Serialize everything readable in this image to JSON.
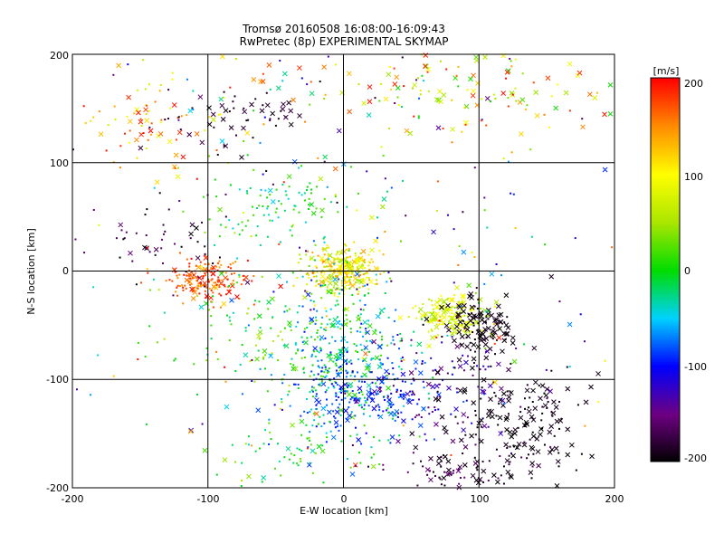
{
  "chart_data": {
    "type": "scatter",
    "title": "Tromsø 20160508 16:08:00-16:09:43",
    "subtitle": "RwPretec (8p) EXPERIMENTAL SKYMAP",
    "xlabel": "E-W location [km]",
    "ylabel": "N-S location [km]",
    "xlim": [
      -200,
      200
    ],
    "ylim": [
      -200,
      200
    ],
    "x_ticks": [
      "-200",
      "-100",
      "0",
      "100",
      "200"
    ],
    "y_ticks": [
      "-200",
      "-100",
      "0",
      "100",
      "200"
    ],
    "grid": true,
    "colorbar": {
      "label": "[m/s]",
      "range": [
        -200,
        200
      ],
      "ticks": [
        "-200",
        "-100",
        "0",
        "100",
        "200"
      ]
    },
    "marker_types": [
      "dot",
      "x"
    ],
    "clusters": [
      {
        "cx": 0,
        "cy": 0,
        "sx": 12,
        "sy": 10,
        "n": 300,
        "vmin": 40,
        "vmax": 150,
        "xfrac": 0.15
      },
      {
        "cx": -100,
        "cy": -8,
        "sx": 14,
        "sy": 9,
        "n": 170,
        "vmin": 140,
        "vmax": 200,
        "xfrac": 0.15
      },
      {
        "cx": 80,
        "cy": -42,
        "sx": 14,
        "sy": 10,
        "n": 170,
        "vmin": 40,
        "vmax": 110,
        "xfrac": 0.25
      },
      {
        "cx": 100,
        "cy": -50,
        "sx": 14,
        "sy": 15,
        "n": 110,
        "vmin": -200,
        "vmax": -185,
        "xfrac": 0.65
      },
      {
        "cx": 0,
        "cy": -80,
        "sx": 25,
        "sy": 38,
        "n": 380,
        "vmin": -100,
        "vmax": 30,
        "xfrac": 0.15
      },
      {
        "cx": 20,
        "cy": -115,
        "sx": 30,
        "sy": 18,
        "n": 170,
        "vmin": -110,
        "vmax": -70,
        "xfrac": 0.25
      },
      {
        "cx": 70,
        "cy": -110,
        "sx": 30,
        "sy": 28,
        "n": 110,
        "vmin": -170,
        "vmax": -110,
        "xfrac": 0.3
      },
      {
        "cx": 125,
        "cy": -140,
        "sx": 30,
        "sy": 30,
        "n": 180,
        "vmin": -200,
        "vmax": -185,
        "xfrac": 0.55
      },
      {
        "cx": -60,
        "cy": -50,
        "sx": 40,
        "sy": 35,
        "n": 130,
        "vmin": -40,
        "vmax": 60,
        "xfrac": 0.1
      },
      {
        "cx": -40,
        "cy": 60,
        "sx": 30,
        "sy": 20,
        "n": 90,
        "vmin": -50,
        "vmax": 30,
        "xfrac": 0.1
      },
      {
        "cx": -130,
        "cy": 25,
        "sx": 25,
        "sy": 20,
        "n": 50,
        "vmin": -200,
        "vmax": -150,
        "xfrac": 0.3
      },
      {
        "cx": -150,
        "cy": 135,
        "sx": 25,
        "sy": 22,
        "n": 70,
        "vmin": 60,
        "vmax": 200,
        "xfrac": 0.4
      },
      {
        "cx": -80,
        "cy": 140,
        "sx": 30,
        "sy": 12,
        "n": 50,
        "vmin": -200,
        "vmax": -170,
        "xfrac": 0.5
      },
      {
        "cx": 100,
        "cy": 170,
        "sx": 50,
        "sy": 25,
        "n": 110,
        "vmin": 0,
        "vmax": 200,
        "xfrac": 0.5
      },
      {
        "cx": 0,
        "cy": 160,
        "sx": 100,
        "sy": 40,
        "n": 80,
        "vmin": -200,
        "vmax": 200,
        "xfrac": 0.3
      },
      {
        "cx": 0,
        "cy": 0,
        "sx": 110,
        "sy": 110,
        "n": 260,
        "vmin": -200,
        "vmax": 200,
        "xfrac": 0.2
      },
      {
        "cx": -40,
        "cy": -170,
        "sx": 30,
        "sy": 20,
        "n": 60,
        "vmin": -50,
        "vmax": 50,
        "xfrac": 0.15
      },
      {
        "cx": 90,
        "cy": -185,
        "sx": 40,
        "sy": 12,
        "n": 70,
        "vmin": -200,
        "vmax": -150,
        "xfrac": 0.4
      }
    ]
  }
}
